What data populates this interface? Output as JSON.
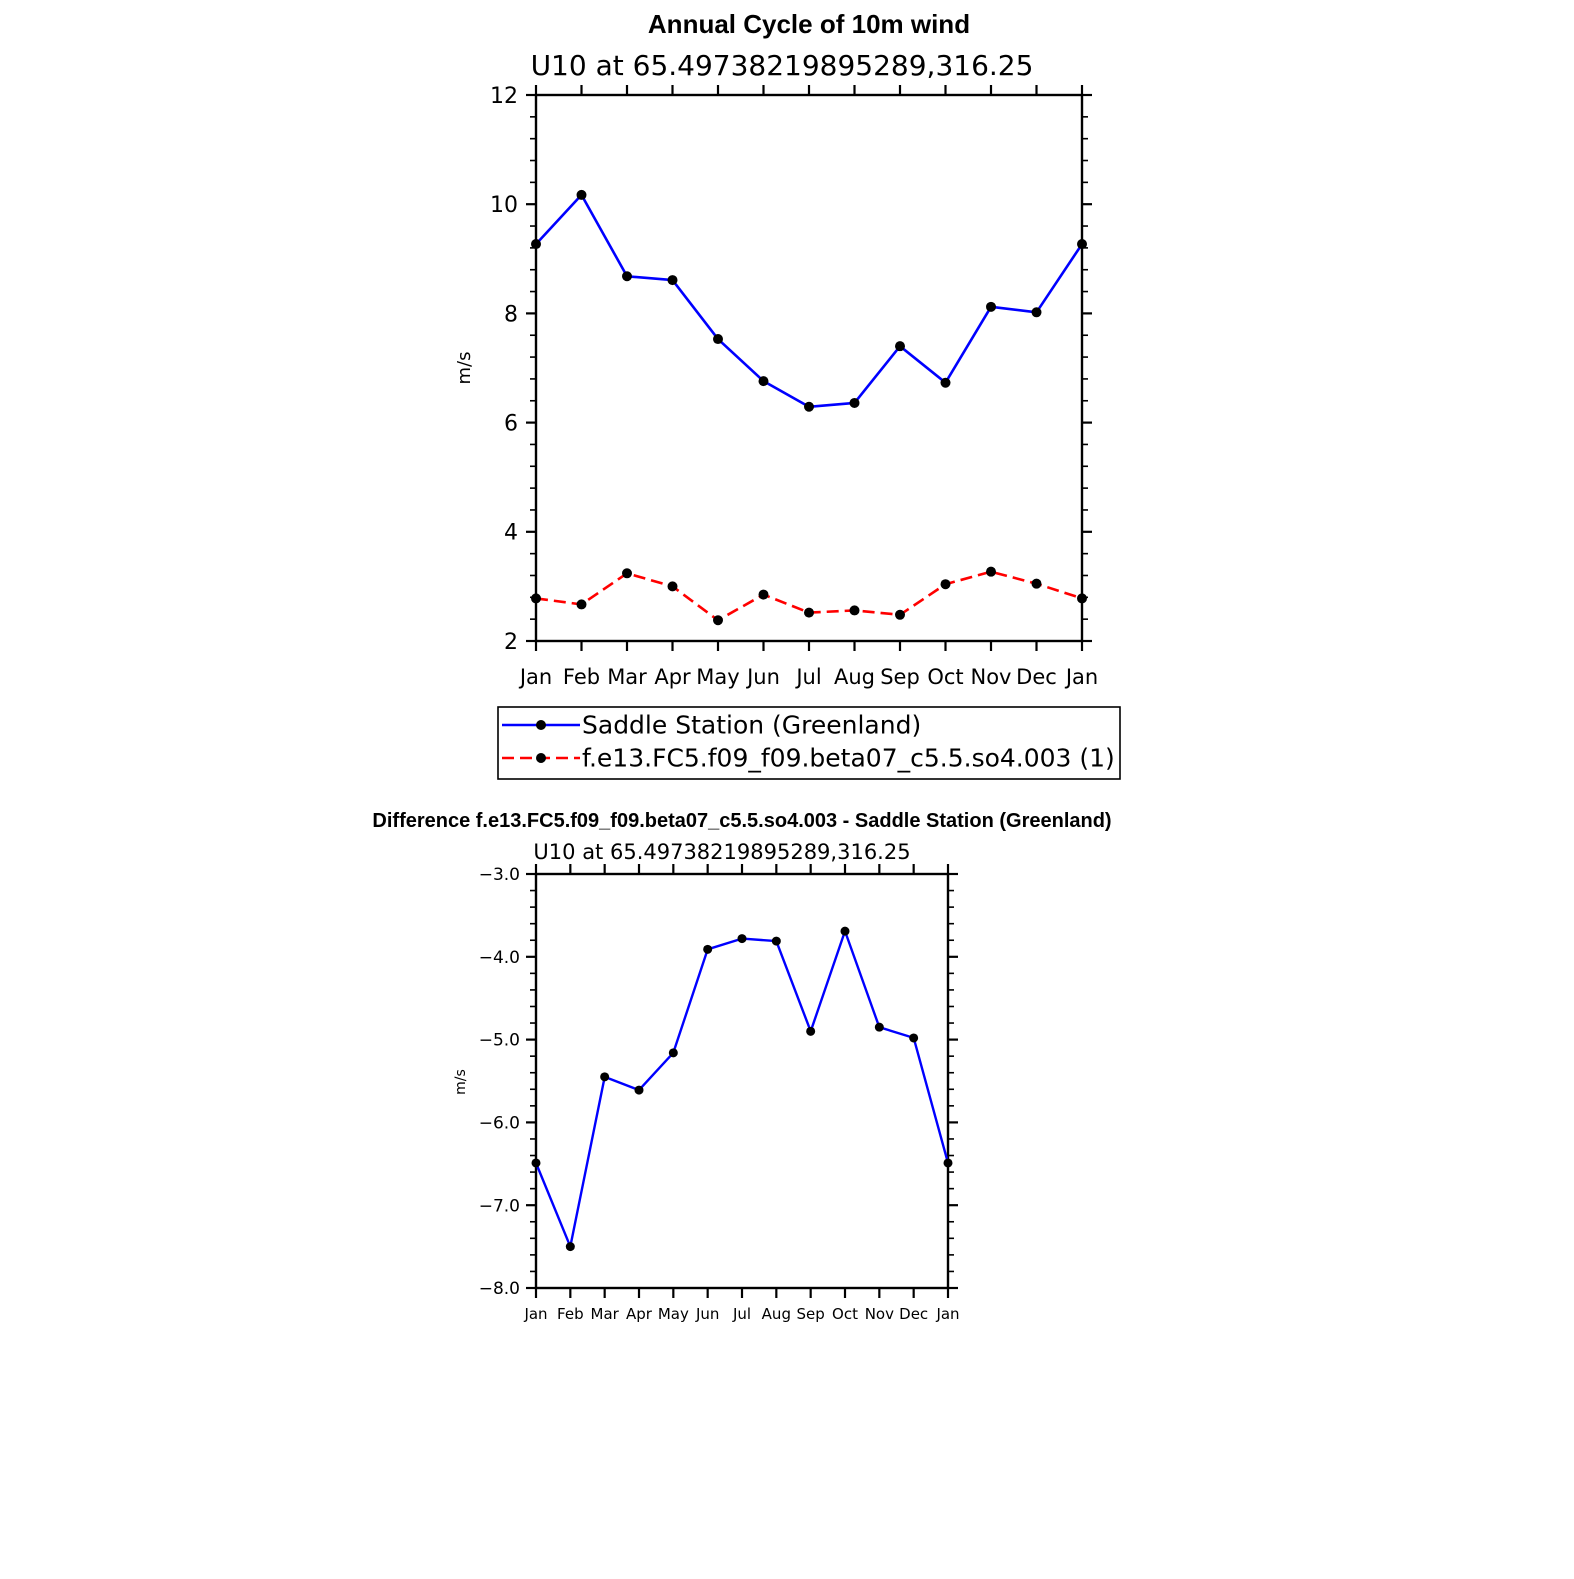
{
  "chart_data": [
    {
      "type": "line",
      "title": "Annual Cycle of 10m wind",
      "subtitle": "U10 at 65.49738219895289,316.25",
      "ylabel": "m/s",
      "xlabel": "",
      "categories": [
        "Jan",
        "Feb",
        "Mar",
        "Apr",
        "May",
        "Jun",
        "Jul",
        "Aug",
        "Sep",
        "Oct",
        "Nov",
        "Dec",
        "Jan"
      ],
      "ylim": [
        2,
        12
      ],
      "yticks": [
        "2",
        "4",
        "6",
        "8",
        "10",
        "12"
      ],
      "legend_position": "bottom",
      "grid": false,
      "series": [
        {
          "name": "Saddle Station (Greenland)",
          "color": "#0000ff",
          "dash": "solid",
          "values": [
            9.27,
            10.17,
            8.68,
            8.61,
            7.53,
            6.76,
            6.29,
            6.36,
            7.4,
            6.73,
            8.12,
            8.02,
            9.27
          ]
        },
        {
          "name": "f.e13.FC5.f09_f09.beta07_c5.5.so4.003 (1)",
          "color": "#ff0000",
          "dash": "dashed",
          "values": [
            2.78,
            2.67,
            3.24,
            3.0,
            2.38,
            2.85,
            2.52,
            2.56,
            2.48,
            3.04,
            3.27,
            3.05,
            2.78
          ]
        }
      ]
    },
    {
      "type": "line",
      "title": "Difference f.e13.FC5.f09_f09.beta07_c5.5.so4.003 - Saddle Station (Greenland)",
      "subtitle": "U10 at 65.49738219895289,316.25",
      "ylabel": "m/s",
      "xlabel": "",
      "categories": [
        "Jan",
        "Feb",
        "Mar",
        "Apr",
        "May",
        "Jun",
        "Jul",
        "Aug",
        "Sep",
        "Oct",
        "Nov",
        "Dec",
        "Jan"
      ],
      "ylim": [
        -8.0,
        -3.0
      ],
      "yticks": [
        "−8.0",
        "−7.0",
        "−6.0",
        "−5.0",
        "−4.0",
        "−3.0"
      ],
      "grid": false,
      "series": [
        {
          "color": "#0000ff",
          "dash": "solid",
          "values": [
            -6.49,
            -7.5,
            -5.45,
            -5.61,
            -5.16,
            -3.91,
            -3.78,
            -3.81,
            -4.9,
            -3.69,
            -4.85,
            -4.98,
            -6.49
          ]
        }
      ]
    }
  ]
}
